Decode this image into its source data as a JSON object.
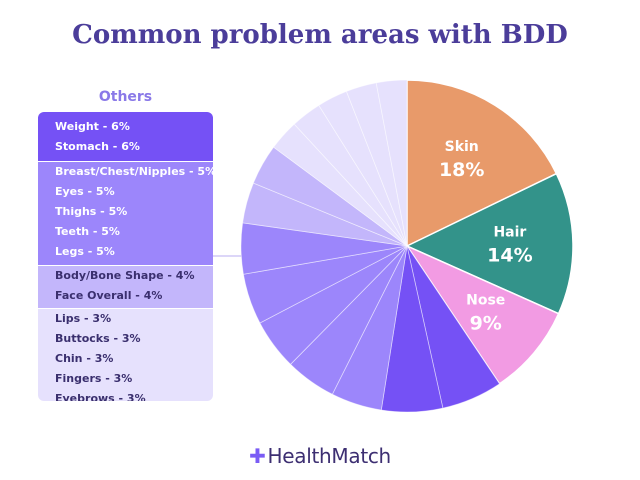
{
  "chart_data": {
    "type": "pie",
    "title": "Common problem areas with BDD",
    "others_label": "Others",
    "slices": [
      {
        "label": "Skin",
        "value": 18,
        "text": "18%",
        "color": "#e89a6a",
        "labeled": true
      },
      {
        "label": "Hair",
        "value": 14,
        "text": "14%",
        "color": "#33938a",
        "labeled": true
      },
      {
        "label": "Nose",
        "value": 9,
        "text": "9%",
        "color": "#f29be3",
        "labeled": true
      },
      {
        "label": "Weight",
        "value": 6,
        "text": "Weight - 6%",
        "color": "#7551f5",
        "labeled": false
      },
      {
        "label": "Stomach",
        "value": 6,
        "text": "Stomach - 6%",
        "color": "#7551f5",
        "labeled": false
      },
      {
        "label": "Breast/Chest/Nipples",
        "value": 5,
        "text": "Breast/Chest/Nipples - 5%",
        "color": "#9c86fb",
        "labeled": false
      },
      {
        "label": "Eyes",
        "value": 5,
        "text": "Eyes - 5%",
        "color": "#9c86fb",
        "labeled": false
      },
      {
        "label": "Thighs",
        "value": 5,
        "text": "Thighs - 5%",
        "color": "#9c86fb",
        "labeled": false
      },
      {
        "label": "Teeth",
        "value": 5,
        "text": "Teeth - 5%",
        "color": "#9c86fb",
        "labeled": false
      },
      {
        "label": "Legs",
        "value": 5,
        "text": "Legs - 5%",
        "color": "#9c86fb",
        "labeled": false
      },
      {
        "label": "Body/Bone Shape",
        "value": 4,
        "text": "Body/Bone Shape - 4%",
        "color": "#c3b6fb",
        "labeled": false
      },
      {
        "label": "Face Overall",
        "value": 4,
        "text": "Face Overall - 4%",
        "color": "#c3b6fb",
        "labeled": false
      },
      {
        "label": "Lips",
        "value": 3,
        "text": "Lips - 3%",
        "color": "#e6e1fd",
        "labeled": false
      },
      {
        "label": "Buttocks",
        "value": 3,
        "text": "Buttocks - 3%",
        "color": "#e6e1fd",
        "labeled": false
      },
      {
        "label": "Chin",
        "value": 3,
        "text": "Chin - 3%",
        "color": "#e6e1fd",
        "labeled": false
      },
      {
        "label": "Fingers",
        "value": 3,
        "text": "Fingers - 3%",
        "color": "#e6e1fd",
        "labeled": false
      },
      {
        "label": "Eyebrows",
        "value": 3,
        "text": "Eyebrows - 3%",
        "color": "#e6e1fd",
        "labeled": false
      }
    ]
  },
  "brand": {
    "name": "HealthMatch",
    "mark": "✚"
  }
}
